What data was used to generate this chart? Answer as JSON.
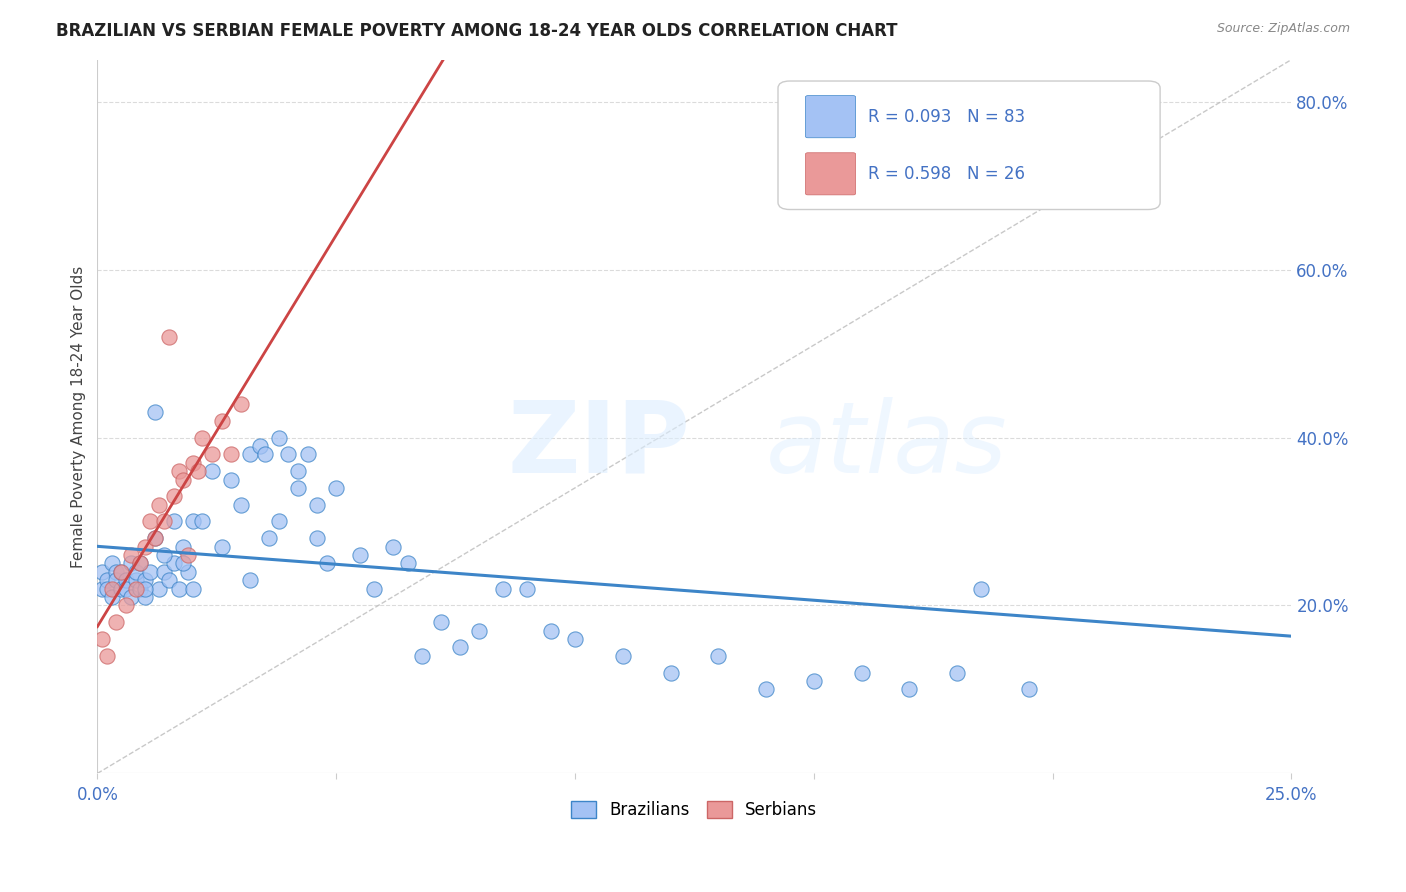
{
  "title": "BRAZILIAN VS SERBIAN FEMALE POVERTY AMONG 18-24 YEAR OLDS CORRELATION CHART",
  "source": "Source: ZipAtlas.com",
  "ylabel": "Female Poverty Among 18-24 Year Olds",
  "xlim": [
    0.0,
    0.25
  ],
  "ylim": [
    0.0,
    0.85
  ],
  "ytick_labels": [
    "20.0%",
    "40.0%",
    "60.0%",
    "80.0%"
  ],
  "yticks": [
    0.2,
    0.4,
    0.6,
    0.8
  ],
  "brazil_color": "#a4c2f4",
  "serbia_color": "#ea9999",
  "brazil_line_color": "#3d85c8",
  "serbia_line_color": "#cc4444",
  "brazil_R": 0.093,
  "brazil_N": 83,
  "serbia_R": 0.598,
  "serbia_N": 26,
  "background_color": "#ffffff",
  "grid_color": "#cccccc",
  "watermark_zip_color": "#dce8f8",
  "watermark_atlas_color": "#dce8f8"
}
